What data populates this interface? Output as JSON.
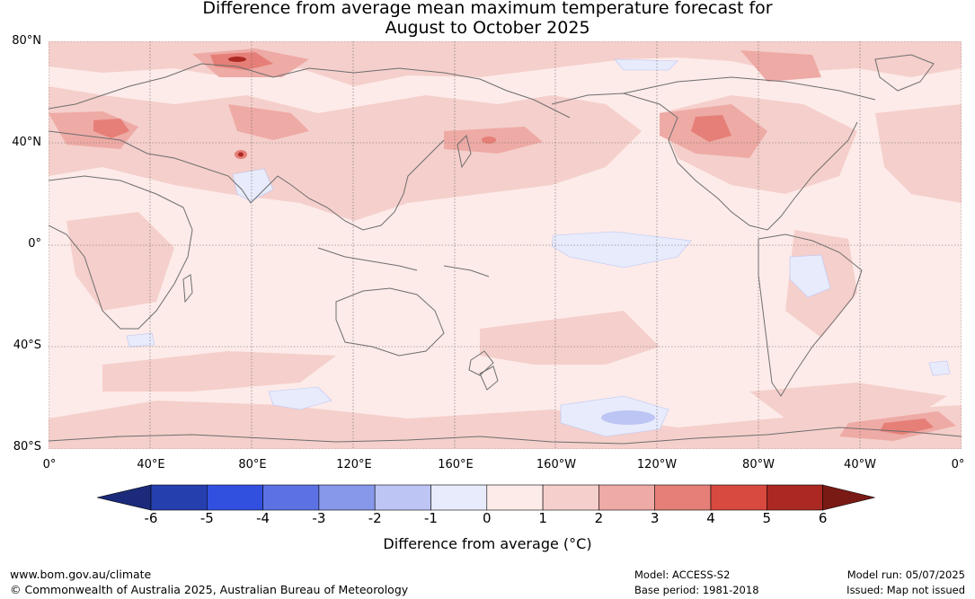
{
  "title": {
    "line1": "Difference from average mean maximum temperature forecast for",
    "line2": "August to October 2025"
  },
  "map": {
    "lat_labels": [
      "80°N",
      "40°N",
      "0°",
      "40°S",
      "80°S"
    ],
    "lon_labels": [
      "0°",
      "40°E",
      "80°E",
      "120°E",
      "160°E",
      "160°W",
      "120°W",
      "80°W",
      "40°W",
      "0°"
    ],
    "background_color": "#fcebe9"
  },
  "colorbar": {
    "ticks": [
      "-6",
      "-5",
      "-4",
      "-3",
      "-2",
      "-1",
      "0",
      "1",
      "2",
      "3",
      "4",
      "5",
      "6"
    ],
    "colors": [
      "#1b2a7a",
      "#263fae",
      "#3250e0",
      "#5c72e4",
      "#8798eb",
      "#bcc5f4",
      "#e7ebfb",
      "#fcebe9",
      "#f5cfcb",
      "#eeaaa5",
      "#e57f77",
      "#d8493f",
      "#ab2823",
      "#7a1a15"
    ],
    "label": "Difference from average (°C)"
  },
  "footer": {
    "url": "www.bom.gov.au/climate",
    "copyright": "© Commonwealth of Australia 2025, Australian Bureau of Meteorology",
    "model": "Model: ACCESS-S2",
    "base_period": "Base period: 1981-2018",
    "model_run": "Model run: 05/07/2025",
    "issued": "Issued: Map not issued"
  }
}
